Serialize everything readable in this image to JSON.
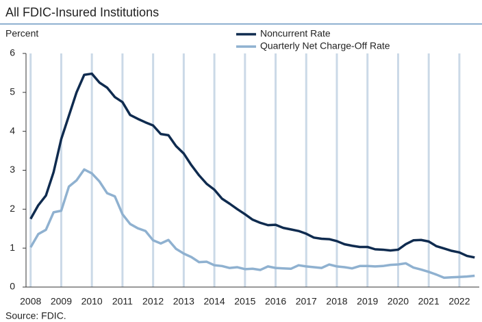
{
  "chart_data": {
    "type": "line",
    "title": "All FDIC-Insured Institutions",
    "y_label": "Percent",
    "source": "Source: FDIC.",
    "x": [
      2008,
      2008.25,
      2008.5,
      2008.75,
      2009,
      2009.25,
      2009.5,
      2009.75,
      2010,
      2010.25,
      2010.5,
      2010.75,
      2011,
      2011.25,
      2011.5,
      2011.75,
      2012,
      2012.25,
      2012.5,
      2012.75,
      2013,
      2013.25,
      2013.5,
      2013.75,
      2014,
      2014.25,
      2014.5,
      2014.75,
      2015,
      2015.25,
      2015.5,
      2015.75,
      2016,
      2016.25,
      2016.5,
      2016.75,
      2017,
      2017.25,
      2017.5,
      2017.75,
      2018,
      2018.25,
      2018.5,
      2018.75,
      2019,
      2019.25,
      2019.5,
      2019.75,
      2020,
      2020.25,
      2020.5,
      2020.75,
      2021,
      2021.25,
      2021.5,
      2021.75,
      2022,
      2022.25,
      2022.5
    ],
    "series": [
      {
        "name": "Noncurrent Rate",
        "color": "#0f2b4f",
        "values": [
          1.75,
          2.1,
          2.35,
          2.95,
          3.8,
          4.4,
          5.0,
          5.45,
          5.48,
          5.25,
          5.12,
          4.88,
          4.75,
          4.42,
          4.32,
          4.23,
          4.15,
          3.93,
          3.9,
          3.62,
          3.43,
          3.13,
          2.87,
          2.65,
          2.5,
          2.27,
          2.14,
          2.0,
          1.87,
          1.73,
          1.65,
          1.59,
          1.6,
          1.52,
          1.48,
          1.44,
          1.37,
          1.27,
          1.24,
          1.23,
          1.18,
          1.1,
          1.06,
          1.03,
          1.03,
          0.97,
          0.96,
          0.94,
          0.96,
          1.1,
          1.2,
          1.21,
          1.17,
          1.05,
          0.99,
          0.93,
          0.89,
          0.8,
          0.76
        ]
      },
      {
        "name": "Quarterly Net Charge-Off Rate",
        "color": "#8fb1d0",
        "values": [
          1.02,
          1.36,
          1.47,
          1.92,
          1.96,
          2.58,
          2.74,
          3.02,
          2.92,
          2.71,
          2.41,
          2.33,
          1.87,
          1.62,
          1.51,
          1.44,
          1.2,
          1.12,
          1.21,
          0.98,
          0.86,
          0.77,
          0.64,
          0.65,
          0.56,
          0.54,
          0.49,
          0.51,
          0.46,
          0.47,
          0.44,
          0.53,
          0.49,
          0.48,
          0.47,
          0.56,
          0.53,
          0.51,
          0.49,
          0.58,
          0.53,
          0.51,
          0.48,
          0.54,
          0.54,
          0.53,
          0.54,
          0.57,
          0.58,
          0.61,
          0.5,
          0.45,
          0.39,
          0.32,
          0.24,
          0.25,
          0.26,
          0.27,
          0.29
        ]
      }
    ],
    "xlim": [
      2007.85,
      2022.65
    ],
    "xticks": [
      2008,
      2009,
      2010,
      2011,
      2012,
      2013,
      2014,
      2015,
      2016,
      2017,
      2018,
      2019,
      2020,
      2021,
      2022
    ],
    "ylim": [
      0,
      6
    ],
    "yticks": [
      0,
      1,
      2,
      3,
      4,
      5,
      6
    ],
    "grid": "x",
    "legend": "top"
  }
}
